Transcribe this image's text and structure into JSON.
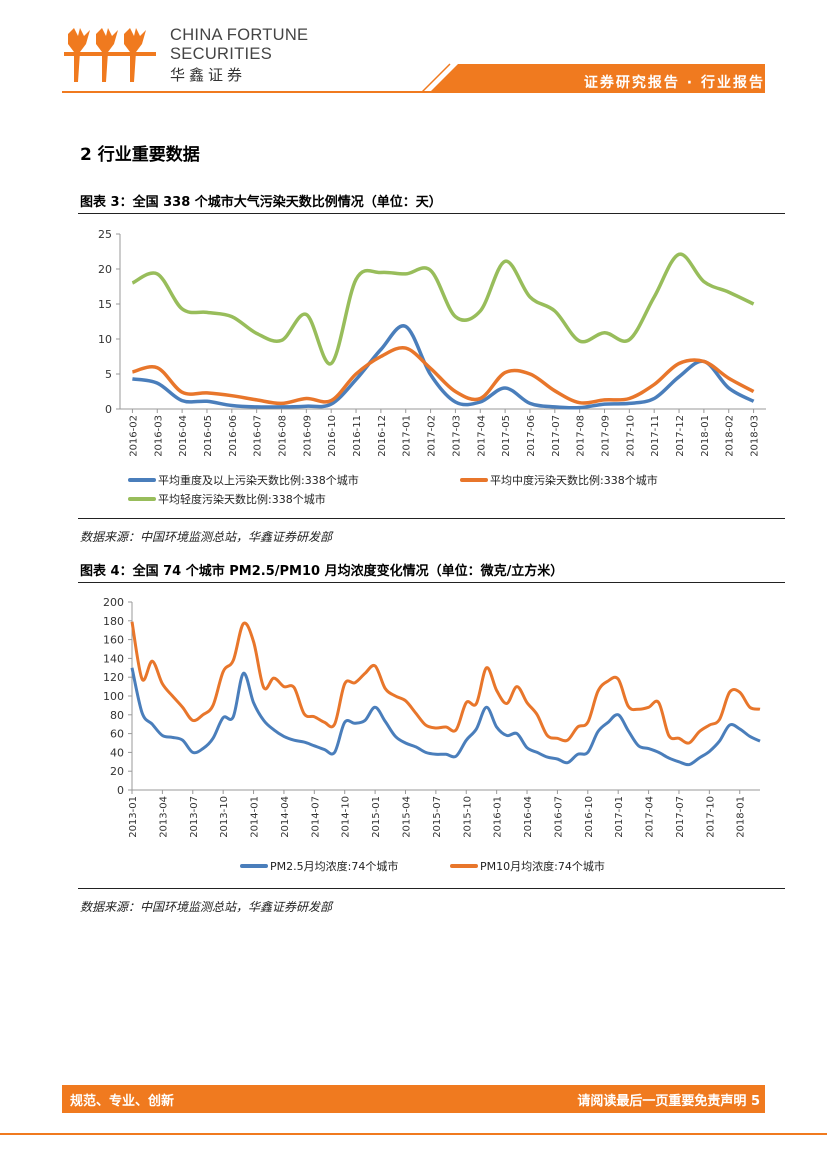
{
  "header": {
    "brand_en_line1": "CHINA FORTUNE",
    "brand_en_line2": "SECURITIES",
    "brand_cn": "华鑫证券",
    "report_type": "证券研究报告 · 行业报告",
    "colors": {
      "accent": "#f07a1f"
    }
  },
  "section_title": "2 行业重要数据",
  "figure3": {
    "title": "图表 3：全国 338 个城市大气污染天数比例情况（单位：天）",
    "source": "数据来源：中国环境监测总站，华鑫证券研发部"
  },
  "figure4": {
    "title": "图表 4：全国 74 个城市 PM2.5/PM10 月均浓度变化情况（单位：微克/立方米）",
    "source": "数据来源：中国环境监测总站，华鑫证券研发部"
  },
  "chart_data": [
    {
      "type": "line",
      "categories": [
        "2016-02",
        "2016-03",
        "2016-04",
        "2016-05",
        "2016-06",
        "2016-07",
        "2016-08",
        "2016-09",
        "2016-10",
        "2016-11",
        "2016-12",
        "2017-01",
        "2017-02",
        "2017-03",
        "2017-04",
        "2017-05",
        "2017-06",
        "2017-07",
        "2017-08",
        "2017-09",
        "2017-10",
        "2017-11",
        "2017-12",
        "2018-01",
        "2018-02",
        "2018-03"
      ],
      "ylim": [
        0,
        25
      ],
      "yticks": [
        "0",
        "5",
        "10",
        "15",
        "20",
        "25"
      ],
      "legend_position": "bottom",
      "series": [
        {
          "name": "平均重度及以上污染天数比例:338个城市",
          "color": "#4a7ebb",
          "values": [
            4.3,
            3.7,
            1.2,
            1.1,
            0.5,
            0.3,
            0.3,
            0.4,
            0.7,
            4.2,
            8.5,
            11.8,
            4.9,
            1.0,
            1.0,
            3.0,
            0.8,
            0.3,
            0.2,
            0.7,
            0.8,
            1.5,
            4.6,
            6.8,
            3.0,
            1.1
          ]
        },
        {
          "name": "平均中度污染天数比例:338个城市",
          "color": "#e8762b",
          "values": [
            5.3,
            5.9,
            2.4,
            2.3,
            1.9,
            1.3,
            0.8,
            1.5,
            1.2,
            5.0,
            7.5,
            8.7,
            5.8,
            2.5,
            1.5,
            5.2,
            5.0,
            2.6,
            0.9,
            1.3,
            1.5,
            3.5,
            6.5,
            6.8,
            4.4,
            2.5
          ]
        },
        {
          "name": "平均轻度污染天数比例:338个城市",
          "color": "#98bd5b",
          "values": [
            18.0,
            19.3,
            14.3,
            13.8,
            13.2,
            10.8,
            9.8,
            13.5,
            6.5,
            18.5,
            19.5,
            19.3,
            19.8,
            13.2,
            14.0,
            21.1,
            16.0,
            14.0,
            9.7,
            10.9,
            9.9,
            16.0,
            22.1,
            18.2,
            16.7,
            15.0
          ]
        }
      ]
    },
    {
      "type": "line",
      "x": [
        "2013-01",
        "2013-02",
        "2013-03",
        "2013-04",
        "2013-05",
        "2013-06",
        "2013-07",
        "2013-08",
        "2013-09",
        "2013-10",
        "2013-11",
        "2013-12",
        "2014-01",
        "2014-02",
        "2014-03",
        "2014-04",
        "2014-05",
        "2014-06",
        "2014-07",
        "2014-08",
        "2014-09",
        "2014-10",
        "2014-11",
        "2014-12",
        "2015-01",
        "2015-02",
        "2015-03",
        "2015-04",
        "2015-05",
        "2015-06",
        "2015-07",
        "2015-08",
        "2015-09",
        "2015-10",
        "2015-11",
        "2015-12",
        "2016-01",
        "2016-02",
        "2016-03",
        "2016-04",
        "2016-05",
        "2016-06",
        "2016-07",
        "2016-08",
        "2016-09",
        "2016-10",
        "2016-11",
        "2016-12",
        "2017-01",
        "2017-02",
        "2017-03",
        "2017-04",
        "2017-05",
        "2017-06",
        "2017-07",
        "2017-08",
        "2017-09",
        "2017-10",
        "2017-11",
        "2017-12",
        "2018-01",
        "2018-02",
        "2018-03"
      ],
      "tick_labels": [
        "2013-01",
        "2013-04",
        "2013-07",
        "2013-10",
        "2014-01",
        "2014-04",
        "2014-07",
        "2014-10",
        "2015-01",
        "2015-04",
        "2015-07",
        "2015-10",
        "2016-01",
        "2016-04",
        "2016-07",
        "2016-10",
        "2017-01",
        "2017-04",
        "2017-07",
        "2017-10",
        "2018-01"
      ],
      "ylim": [
        0,
        200
      ],
      "yticks": [
        "0",
        "20",
        "40",
        "60",
        "80",
        "100",
        "120",
        "140",
        "160",
        "180",
        "200"
      ],
      "legend_position": "bottom",
      "series": [
        {
          "name": "PM2.5月均浓度:74个城市",
          "color": "#4a7ebb",
          "values": [
            130,
            82,
            70,
            58,
            56,
            53,
            40,
            44,
            55,
            77,
            78,
            124,
            93,
            74,
            64,
            57,
            53,
            51,
            47,
            43,
            40,
            72,
            71,
            74,
            88,
            73,
            57,
            50,
            46,
            40,
            38,
            38,
            36,
            53,
            65,
            88,
            67,
            58,
            60,
            45,
            40,
            35,
            33,
            29,
            38,
            40,
            62,
            72,
            80,
            63,
            47,
            44,
            40,
            34,
            30,
            27,
            34,
            41,
            52,
            69,
            65,
            57,
            52
          ]
        },
        {
          "name": "PM10月均浓度:74个城市",
          "color": "#e8762b",
          "values": [
            179,
            118,
            137,
            113,
            100,
            88,
            74,
            80,
            90,
            126,
            138,
            177,
            158,
            109,
            119,
            110,
            109,
            81,
            78,
            72,
            70,
            113,
            114,
            124,
            132,
            108,
            100,
            95,
            82,
            69,
            66,
            67,
            64,
            93,
            92,
            130,
            106,
            92,
            110,
            93,
            80,
            58,
            55,
            53,
            67,
            72,
            105,
            116,
            118,
            89,
            86,
            88,
            93,
            58,
            55,
            50,
            62,
            69,
            75,
            104,
            104,
            88,
            86
          ]
        }
      ]
    }
  ]
}
